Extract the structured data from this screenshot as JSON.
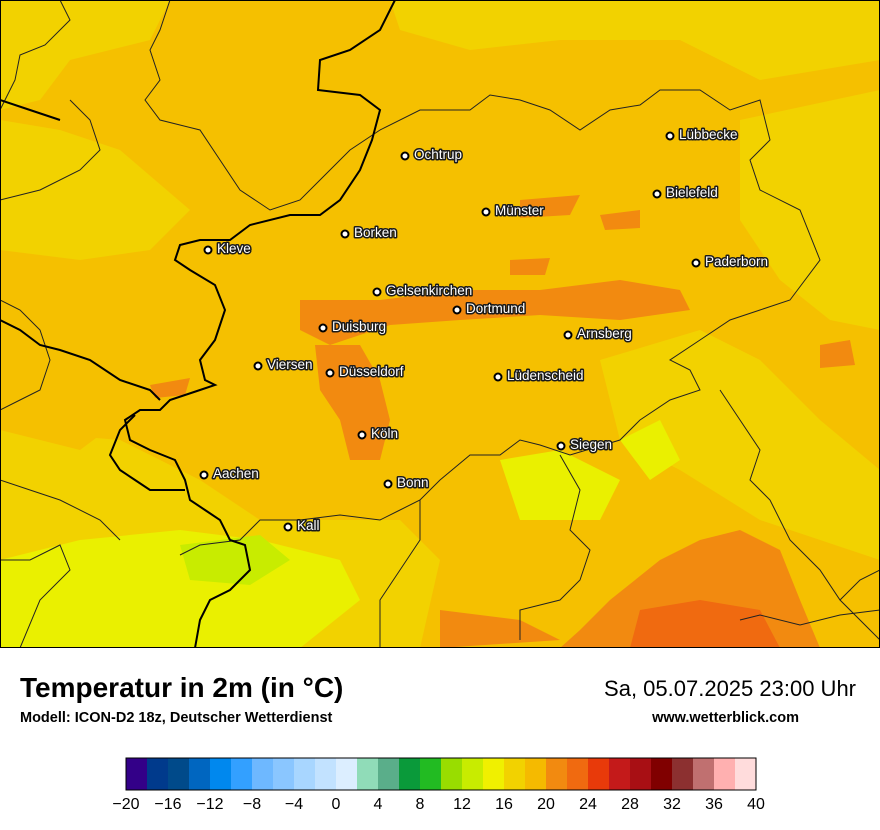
{
  "map": {
    "cities": [
      {
        "name": "Lübbecke"
      },
      {
        "name": "Ochtrup"
      },
      {
        "name": "Bielefeld"
      },
      {
        "name": "Münster"
      },
      {
        "name": "Borken"
      },
      {
        "name": "Kleve"
      },
      {
        "name": "Paderborn"
      },
      {
        "name": "Gelsenkirchen"
      },
      {
        "name": "Dortmund"
      },
      {
        "name": "Duisburg"
      },
      {
        "name": "Arnsberg"
      },
      {
        "name": "Viersen"
      },
      {
        "name": "Düsseldorf"
      },
      {
        "name": "Lüdenscheid"
      },
      {
        "name": "Köln"
      },
      {
        "name": "Siegen"
      },
      {
        "name": "Aachen"
      },
      {
        "name": "Bonn"
      },
      {
        "name": "Kall"
      }
    ]
  },
  "footer": {
    "title": "Temperatur in 2m (in °C)",
    "subtitle": "Modell: ICON-D2 18z, Deutscher Wetterdienst",
    "datetime": "Sa, 05.07.2025 23:00 Uhr",
    "website": "www.wetterblick.com"
  },
  "legend": {
    "min": -20,
    "max": 40,
    "step": 2,
    "ticks": [
      "−20",
      "−16",
      "−12",
      "−8",
      "−4",
      "0",
      "4",
      "8",
      "12",
      "16",
      "20",
      "24",
      "28",
      "32",
      "36",
      "40"
    ],
    "colors": [
      "#330088",
      "#003a8c",
      "#004a8a",
      "#0066c0",
      "#0088ee",
      "#33a0ff",
      "#6eb8ff",
      "#8ac6ff",
      "#a8d6ff",
      "#c2e2ff",
      "#dceeff",
      "#90dcb8",
      "#5aae8a",
      "#0a9a3a",
      "#22bb22",
      "#99dd00",
      "#c8ec00",
      "#f0f000",
      "#f2d200",
      "#f5ba00",
      "#f28a10",
      "#f06a10",
      "#e83a0a",
      "#c41a1a",
      "#a80f14",
      "#800000",
      "#8c3030",
      "#c07070",
      "#ffb0b0",
      "#ffdcdc"
    ]
  }
}
